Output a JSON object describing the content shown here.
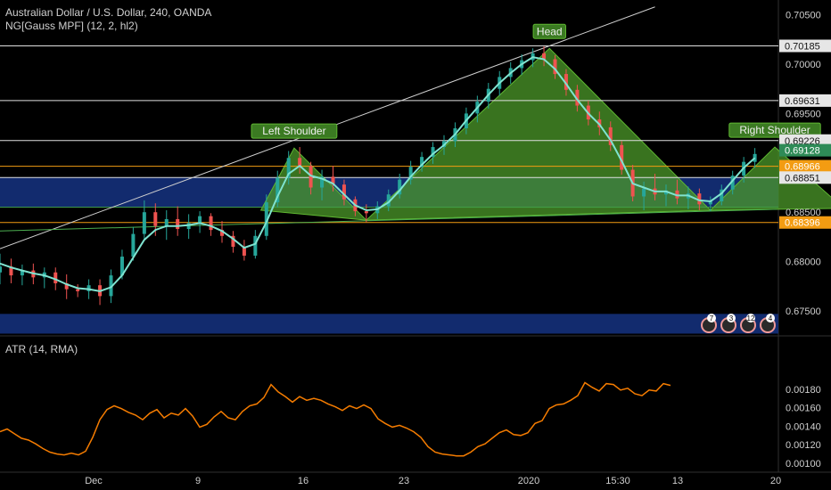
{
  "header": {
    "title": "Australian Dollar / U.S. Dollar, 240, OANDA",
    "indicator": "NG[Gauss MPF] (12, 2, hl2)",
    "atr_label": "ATR (14, RMA)"
  },
  "badges": [
    "7",
    "3",
    "12",
    "4"
  ],
  "colors": {
    "background": "#000000",
    "up_candle": "#26a69a",
    "down_candle": "#ef5350",
    "gauss_line": "#7fe3d0",
    "pattern_fill": "#4c9a2a",
    "zone_fill": "#14307a",
    "resistance_line": "#e0e0e0",
    "orange_line": "#f39c12",
    "atr_line": "#f57c00",
    "green_line": "#43a047"
  },
  "chart_data": [
    {
      "type": "candlestick",
      "symbol": "Australian Dollar / U.S. Dollar",
      "interval": "240",
      "source": "OANDA",
      "price_axis": {
        "ticks": [
          0.675,
          0.68,
          0.685,
          0.6895,
          0.695,
          0.7,
          0.705
        ],
        "tick_labels": [
          "0.67500",
          "0.68000",
          "0.68500",
          "",
          "0.69500",
          "0.70000",
          "0.70500"
        ]
      },
      "time_axis": {
        "labels": [
          "Dec",
          "9",
          "16",
          "23",
          "2020",
          "15:30",
          "13",
          "20"
        ],
        "positions": [
          0.0,
          0.1,
          0.2,
          0.3,
          0.4,
          0.5,
          0.6,
          0.7
        ]
      },
      "pattern": {
        "name": "Head and Shoulders",
        "labels": {
          "left_shoulder": "Left Shoulder",
          "head": "Head",
          "right_shoulder": "Right Shoulder"
        },
        "points": [
          {
            "t": 0.235,
            "p": 0.6852
          },
          {
            "t": 0.265,
            "p": 0.6915
          },
          {
            "t": 0.33,
            "p": 0.6842
          },
          {
            "t": 0.495,
            "p": 0.7016
          },
          {
            "t": 0.64,
            "p": 0.6852
          },
          {
            "t": 0.698,
            "p": 0.6916
          },
          {
            "t": 0.76,
            "p": 0.6854
          }
        ]
      },
      "horizontal_levels": [
        {
          "price": 0.70185,
          "label": "0.70185",
          "style": "resistance"
        },
        {
          "price": 0.69631,
          "label": "0.69631",
          "style": "resistance"
        },
        {
          "price": 0.69226,
          "label": "0.69226",
          "style": "resistance"
        },
        {
          "price": 0.69128,
          "label": "0.69128",
          "style": "green-tag"
        },
        {
          "price": 0.68966,
          "label": "0.68966",
          "style": "orange"
        },
        {
          "price": 0.68851,
          "label": "0.68851",
          "style": "resistance"
        },
        {
          "price": 0.68396,
          "label": "0.68396",
          "style": "orange"
        },
        {
          "price": 0.6855,
          "label": "",
          "style": "green-line"
        }
      ],
      "zones": [
        {
          "from": 0.6855,
          "to": 0.6885
        },
        {
          "from": 0.6727,
          "to": 0.6747
        }
      ],
      "trendlines": [
        {
          "from": {
            "t": 0.0,
            "p": 0.6813
          },
          "to": {
            "t": 0.59,
            "p": 0.7058
          }
        },
        {
          "from": {
            "t": 0.0,
            "p": 0.6831
          },
          "to": {
            "t": 0.7,
            "p": 0.6853
          }
        }
      ],
      "candles": [
        {
          "t": 0.0,
          "o": 0.6789,
          "h": 0.6808,
          "l": 0.6777,
          "c": 0.6795
        },
        {
          "t": 0.01,
          "o": 0.6795,
          "h": 0.6803,
          "l": 0.6778,
          "c": 0.6786
        },
        {
          "t": 0.02,
          "o": 0.6786,
          "h": 0.6797,
          "l": 0.6776,
          "c": 0.6791
        },
        {
          "t": 0.03,
          "o": 0.6791,
          "h": 0.6798,
          "l": 0.6777,
          "c": 0.6784
        },
        {
          "t": 0.04,
          "o": 0.6784,
          "h": 0.6794,
          "l": 0.6773,
          "c": 0.6789
        },
        {
          "t": 0.05,
          "o": 0.6789,
          "h": 0.6794,
          "l": 0.6771,
          "c": 0.6778
        },
        {
          "t": 0.06,
          "o": 0.6778,
          "h": 0.6787,
          "l": 0.6762,
          "c": 0.6772
        },
        {
          "t": 0.07,
          "o": 0.6772,
          "h": 0.6777,
          "l": 0.6764,
          "c": 0.677
        },
        {
          "t": 0.08,
          "o": 0.677,
          "h": 0.6782,
          "l": 0.6762,
          "c": 0.6776
        },
        {
          "t": 0.09,
          "o": 0.6776,
          "h": 0.6782,
          "l": 0.6756,
          "c": 0.6765
        },
        {
          "t": 0.1,
          "o": 0.6765,
          "h": 0.6792,
          "l": 0.6758,
          "c": 0.6786
        },
        {
          "t": 0.11,
          "o": 0.6786,
          "h": 0.6812,
          "l": 0.6782,
          "c": 0.6805
        },
        {
          "t": 0.12,
          "o": 0.6805,
          "h": 0.6835,
          "l": 0.6801,
          "c": 0.6828
        },
        {
          "t": 0.13,
          "o": 0.6828,
          "h": 0.6862,
          "l": 0.6822,
          "c": 0.685
        },
        {
          "t": 0.14,
          "o": 0.685,
          "h": 0.6859,
          "l": 0.6826,
          "c": 0.6836
        },
        {
          "t": 0.15,
          "o": 0.6836,
          "h": 0.6852,
          "l": 0.6822,
          "c": 0.6843
        },
        {
          "t": 0.16,
          "o": 0.6843,
          "h": 0.6856,
          "l": 0.6826,
          "c": 0.6833
        },
        {
          "t": 0.17,
          "o": 0.6833,
          "h": 0.6848,
          "l": 0.6823,
          "c": 0.6839
        },
        {
          "t": 0.18,
          "o": 0.6839,
          "h": 0.6851,
          "l": 0.6829,
          "c": 0.6846
        },
        {
          "t": 0.19,
          "o": 0.6846,
          "h": 0.6849,
          "l": 0.6826,
          "c": 0.6832
        },
        {
          "t": 0.2,
          "o": 0.6832,
          "h": 0.6841,
          "l": 0.6819,
          "c": 0.6826
        },
        {
          "t": 0.21,
          "o": 0.6826,
          "h": 0.6831,
          "l": 0.6809,
          "c": 0.6815
        },
        {
          "t": 0.22,
          "o": 0.6815,
          "h": 0.6822,
          "l": 0.6801,
          "c": 0.6806
        },
        {
          "t": 0.23,
          "o": 0.6806,
          "h": 0.6832,
          "l": 0.6803,
          "c": 0.6826
        },
        {
          "t": 0.24,
          "o": 0.6826,
          "h": 0.6868,
          "l": 0.6822,
          "c": 0.686
        },
        {
          "t": 0.25,
          "o": 0.686,
          "h": 0.6892,
          "l": 0.6855,
          "c": 0.6885
        },
        {
          "t": 0.26,
          "o": 0.6885,
          "h": 0.6912,
          "l": 0.6878,
          "c": 0.6905
        },
        {
          "t": 0.27,
          "o": 0.6905,
          "h": 0.6916,
          "l": 0.6889,
          "c": 0.6897
        },
        {
          "t": 0.28,
          "o": 0.6897,
          "h": 0.6901,
          "l": 0.6868,
          "c": 0.6875
        },
        {
          "t": 0.29,
          "o": 0.6875,
          "h": 0.6893,
          "l": 0.6862,
          "c": 0.6886
        },
        {
          "t": 0.3,
          "o": 0.6886,
          "h": 0.6897,
          "l": 0.6871,
          "c": 0.6878
        },
        {
          "t": 0.31,
          "o": 0.6878,
          "h": 0.6883,
          "l": 0.6857,
          "c": 0.6863
        },
        {
          "t": 0.32,
          "o": 0.6863,
          "h": 0.6866,
          "l": 0.6846,
          "c": 0.6851
        },
        {
          "t": 0.33,
          "o": 0.6851,
          "h": 0.6858,
          "l": 0.684,
          "c": 0.6849
        },
        {
          "t": 0.34,
          "o": 0.6849,
          "h": 0.6861,
          "l": 0.6843,
          "c": 0.6856
        },
        {
          "t": 0.35,
          "o": 0.6856,
          "h": 0.6873,
          "l": 0.6851,
          "c": 0.6868
        },
        {
          "t": 0.36,
          "o": 0.6868,
          "h": 0.6889,
          "l": 0.6864,
          "c": 0.6883
        },
        {
          "t": 0.37,
          "o": 0.6883,
          "h": 0.6902,
          "l": 0.6878,
          "c": 0.6896
        },
        {
          "t": 0.38,
          "o": 0.6896,
          "h": 0.6911,
          "l": 0.6891,
          "c": 0.6906
        },
        {
          "t": 0.39,
          "o": 0.6906,
          "h": 0.6921,
          "l": 0.6899,
          "c": 0.6916
        },
        {
          "t": 0.4,
          "o": 0.6916,
          "h": 0.6928,
          "l": 0.6908,
          "c": 0.6922
        },
        {
          "t": 0.41,
          "o": 0.6922,
          "h": 0.6941,
          "l": 0.6916,
          "c": 0.6935
        },
        {
          "t": 0.42,
          "o": 0.6935,
          "h": 0.6956,
          "l": 0.6929,
          "c": 0.695
        },
        {
          "t": 0.43,
          "o": 0.695,
          "h": 0.6968,
          "l": 0.6941,
          "c": 0.6962
        },
        {
          "t": 0.44,
          "o": 0.6962,
          "h": 0.6981,
          "l": 0.6955,
          "c": 0.6975
        },
        {
          "t": 0.45,
          "o": 0.6975,
          "h": 0.6993,
          "l": 0.6968,
          "c": 0.6987
        },
        {
          "t": 0.46,
          "o": 0.6987,
          "h": 0.7002,
          "l": 0.698,
          "c": 0.6996
        },
        {
          "t": 0.47,
          "o": 0.6996,
          "h": 0.701,
          "l": 0.6989,
          "c": 0.7004
        },
        {
          "t": 0.48,
          "o": 0.7004,
          "h": 0.7016,
          "l": 0.6997,
          "c": 0.7011
        },
        {
          "t": 0.49,
          "o": 0.7011,
          "h": 0.7018,
          "l": 0.6998,
          "c": 0.7005
        },
        {
          "t": 0.5,
          "o": 0.7005,
          "h": 0.7009,
          "l": 0.6985,
          "c": 0.699
        },
        {
          "t": 0.51,
          "o": 0.699,
          "h": 0.6995,
          "l": 0.6968,
          "c": 0.6974
        },
        {
          "t": 0.52,
          "o": 0.6974,
          "h": 0.6979,
          "l": 0.6952,
          "c": 0.6958
        },
        {
          "t": 0.53,
          "o": 0.6958,
          "h": 0.6963,
          "l": 0.6938,
          "c": 0.6944
        },
        {
          "t": 0.54,
          "o": 0.6944,
          "h": 0.6952,
          "l": 0.6928,
          "c": 0.6936
        },
        {
          "t": 0.55,
          "o": 0.6936,
          "h": 0.6942,
          "l": 0.6912,
          "c": 0.6918
        },
        {
          "t": 0.56,
          "o": 0.6918,
          "h": 0.6922,
          "l": 0.6888,
          "c": 0.6893
        },
        {
          "t": 0.57,
          "o": 0.6893,
          "h": 0.6898,
          "l": 0.6861,
          "c": 0.6866
        },
        {
          "t": 0.58,
          "o": 0.6866,
          "h": 0.6881,
          "l": 0.6852,
          "c": 0.6874
        },
        {
          "t": 0.59,
          "o": 0.6874,
          "h": 0.6889,
          "l": 0.6862,
          "c": 0.6868
        },
        {
          "t": 0.6,
          "o": 0.6868,
          "h": 0.6878,
          "l": 0.6856,
          "c": 0.6872
        },
        {
          "t": 0.61,
          "o": 0.6872,
          "h": 0.6883,
          "l": 0.6858,
          "c": 0.6864
        },
        {
          "t": 0.62,
          "o": 0.6864,
          "h": 0.6876,
          "l": 0.6853,
          "c": 0.6869
        },
        {
          "t": 0.63,
          "o": 0.6869,
          "h": 0.6874,
          "l": 0.6852,
          "c": 0.6858
        },
        {
          "t": 0.64,
          "o": 0.6858,
          "h": 0.6866,
          "l": 0.6851,
          "c": 0.6861
        },
        {
          "t": 0.65,
          "o": 0.6861,
          "h": 0.6878,
          "l": 0.6857,
          "c": 0.6873
        },
        {
          "t": 0.66,
          "o": 0.6873,
          "h": 0.6892,
          "l": 0.6868,
          "c": 0.6887
        },
        {
          "t": 0.67,
          "o": 0.6887,
          "h": 0.6906,
          "l": 0.688,
          "c": 0.6901
        },
        {
          "t": 0.68,
          "o": 0.6901,
          "h": 0.6915,
          "l": 0.6895,
          "c": 0.6909
        }
      ],
      "gauss_line_values": [
        0.6798,
        0.6794,
        0.6791,
        0.6788,
        0.6786,
        0.6782,
        0.6777,
        0.6773,
        0.6772,
        0.677,
        0.6774,
        0.6786,
        0.6804,
        0.6822,
        0.6832,
        0.6836,
        0.6836,
        0.6837,
        0.6839,
        0.6836,
        0.6831,
        0.6823,
        0.6814,
        0.6818,
        0.684,
        0.6866,
        0.6889,
        0.6897,
        0.6887,
        0.6884,
        0.6879,
        0.6868,
        0.6857,
        0.6852,
        0.6853,
        0.686,
        0.6872,
        0.6886,
        0.6898,
        0.6909,
        0.6918,
        0.6929,
        0.6943,
        0.6956,
        0.6969,
        0.6981,
        0.6991,
        0.7,
        0.7007,
        0.7005,
        0.6995,
        0.698,
        0.6964,
        0.695,
        0.6939,
        0.6923,
        0.6902,
        0.6879,
        0.6875,
        0.6871,
        0.6871,
        0.6867,
        0.6867,
        0.6862,
        0.6861,
        0.6869,
        0.6882,
        0.6895,
        0.6905
      ]
    },
    {
      "type": "line",
      "name": "ATR (14, RMA)",
      "y_axis": {
        "ticks": [
          0.001,
          0.0012,
          0.0014,
          0.0016,
          0.0018
        ],
        "tick_labels": [
          "0.00100",
          "0.00120",
          "0.00140",
          "0.00160",
          "0.00180"
        ],
        "ylim": [
          0.00099,
          0.0019
        ]
      },
      "values": [
        0.00134,
        0.00137,
        0.00132,
        0.00127,
        0.00125,
        0.00121,
        0.00116,
        0.00112,
        0.0011,
        0.00109,
        0.00111,
        0.00109,
        0.00113,
        0.00128,
        0.00147,
        0.00158,
        0.00162,
        0.00159,
        0.00155,
        0.00152,
        0.00147,
        0.00154,
        0.00158,
        0.00149,
        0.00154,
        0.00152,
        0.00159,
        0.00151,
        0.00139,
        0.00142,
        0.0015,
        0.00156,
        0.00149,
        0.00147,
        0.00156,
        0.00162,
        0.00164,
        0.00171,
        0.00185,
        0.00177,
        0.00172,
        0.00166,
        0.00172,
        0.00168,
        0.0017,
        0.00168,
        0.00164,
        0.00161,
        0.00157,
        0.00162,
        0.00159,
        0.00163,
        0.00159,
        0.00148,
        0.00143,
        0.00139,
        0.00141,
        0.00138,
        0.00134,
        0.00128,
        0.00118,
        0.00112,
        0.0011,
        0.00109,
        0.00108,
        0.00108,
        0.00112,
        0.00118,
        0.00121,
        0.00127,
        0.00133,
        0.00136,
        0.00131,
        0.0013,
        0.00133,
        0.00143,
        0.00146,
        0.00159,
        0.00163,
        0.00164,
        0.00168,
        0.00173,
        0.00187,
        0.00182,
        0.00178,
        0.00186,
        0.00185,
        0.00179,
        0.00181,
        0.00175,
        0.00173,
        0.00179,
        0.00178,
        0.00186,
        0.00184
      ]
    }
  ]
}
